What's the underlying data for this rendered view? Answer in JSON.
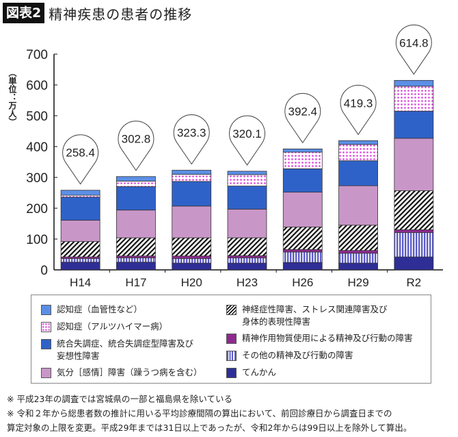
{
  "figure_label": "図表2",
  "title": "精神疾患の患者の推移",
  "ylabel": "（単位：万人）",
  "colors": {
    "vascular": "#5b8fe6",
    "alzheimer": "#e055e0",
    "schizo": "#2f62c8",
    "mood": "#c996c8",
    "neurotic": "#111111",
    "substance": "#8e2a8e",
    "other": "#5d5dc8",
    "epilepsy": "#2e2e96"
  },
  "chart_data": {
    "type": "bar",
    "stacked": true,
    "ylim": [
      0,
      700
    ],
    "yticks": [
      0,
      100,
      200,
      300,
      400,
      500,
      600,
      700
    ],
    "grid": false,
    "legend_placement": "bottom",
    "categories": [
      "H14",
      "H17",
      "H20",
      "H23",
      "H26",
      "H29",
      "R2"
    ],
    "totals": [
      "258.4",
      "302.8",
      "323.3",
      "320.1",
      "392.4",
      "419.3",
      "614.8"
    ],
    "series": [
      {
        "key": "epilepsy",
        "name": "てんかん",
        "values": [
          25,
          25,
          22,
          22,
          24,
          22,
          42
        ]
      },
      {
        "key": "other",
        "name": "その他の精神及び行動の障害",
        "values": [
          12,
          14,
          15,
          17,
          34,
          32,
          79
        ]
      },
      {
        "key": "substance",
        "name": "精神作用物質使用による精神及び行動の障害",
        "values": [
          5,
          6,
          8,
          7,
          8,
          9,
          9
        ]
      },
      {
        "key": "neurotic",
        "name": "神経症性障害、ストレス関連障害及び身体的表現性障害",
        "values": [
          50,
          59,
          59,
          58,
          73,
          82,
          127
        ]
      },
      {
        "key": "mood",
        "name": "気分［感情］障害（躁うつ病を含む）",
        "values": [
          69,
          90,
          103,
          93,
          113,
          128,
          170
        ]
      },
      {
        "key": "schizo",
        "name": "統合失調症、統合失調症型障害及び妄想性障害",
        "values": [
          75,
          76,
          80,
          75,
          76,
          81,
          88
        ]
      },
      {
        "key": "alzheimer",
        "name": "認知症（アルツハイマー病）",
        "values": [
          6,
          18,
          23,
          37,
          54,
          53,
          81
        ]
      },
      {
        "key": "vascular",
        "name": "認知症（血管性など）",
        "values": [
          16.4,
          14.8,
          13.3,
          11.1,
          10.4,
          12.3,
          18.8
        ]
      }
    ]
  },
  "legend": {
    "vascular": "認知症（血管性など）",
    "alzheimer": "認知症（アルツハイマー病）",
    "schizo_1": "統合失調症、統合失調症型障害及び",
    "schizo_2": "妄想性障害",
    "mood": "気分［感情］障害（躁うつ病を含む）",
    "neurotic_1": "神経症性障害、ストレス関連障害及び",
    "neurotic_2": "身体的表現性障害",
    "substance": "精神作用物質使用による精神及び行動の障害",
    "other": "その他の精神及び行動の障害",
    "epilepsy": "てんかん"
  },
  "notes": [
    "※ 平成23年の調査では宮城県の一部と福島県を除いている",
    "※ 令和２年から総患者数の推計に用いる平均診療間隔の算出において、前回診療日から調査日までの",
    "算定対象の上限を変更。平成29年までは31日以上であったが、令和2年からは99日以上を除外して算出。"
  ]
}
